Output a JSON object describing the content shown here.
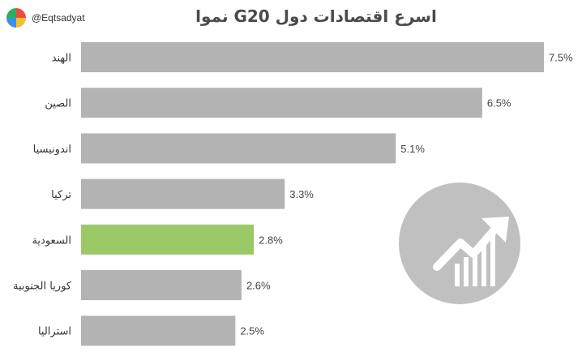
{
  "brand": {
    "handle": "@Eqtsadyat",
    "icon": "pie-chart-logo-icon",
    "logo_colors": [
      "#e94c3d",
      "#f2c12e",
      "#3c8ee8",
      "#2eae5c"
    ]
  },
  "title": "اسرع اقتصادات دول G20 نموا",
  "emblem": {
    "icon": "trend-up-chart-icon",
    "color": "#c0c0c0"
  },
  "chart_data": {
    "type": "bar",
    "orientation": "horizontal",
    "title": "اسرع اقتصادات دول G20 نموا",
    "xlabel": "",
    "ylabel": "",
    "xlim": [
      0,
      7.5
    ],
    "grid": false,
    "categories": [
      "الهند",
      "الصين",
      "اندونيسيا",
      "تركيا",
      "السعودية",
      "كوريا الجنوبية",
      "استراليا"
    ],
    "values": [
      7.5,
      6.5,
      5.1,
      3.3,
      2.8,
      2.6,
      2.5
    ],
    "value_labels": [
      "7.5%",
      "6.5%",
      "5.1%",
      "3.3%",
      "2.8%",
      "2.6%",
      "2.5%"
    ],
    "bar_color": "#b3b3b3",
    "highlight_index": 4,
    "highlight_color": "#9cc967"
  }
}
